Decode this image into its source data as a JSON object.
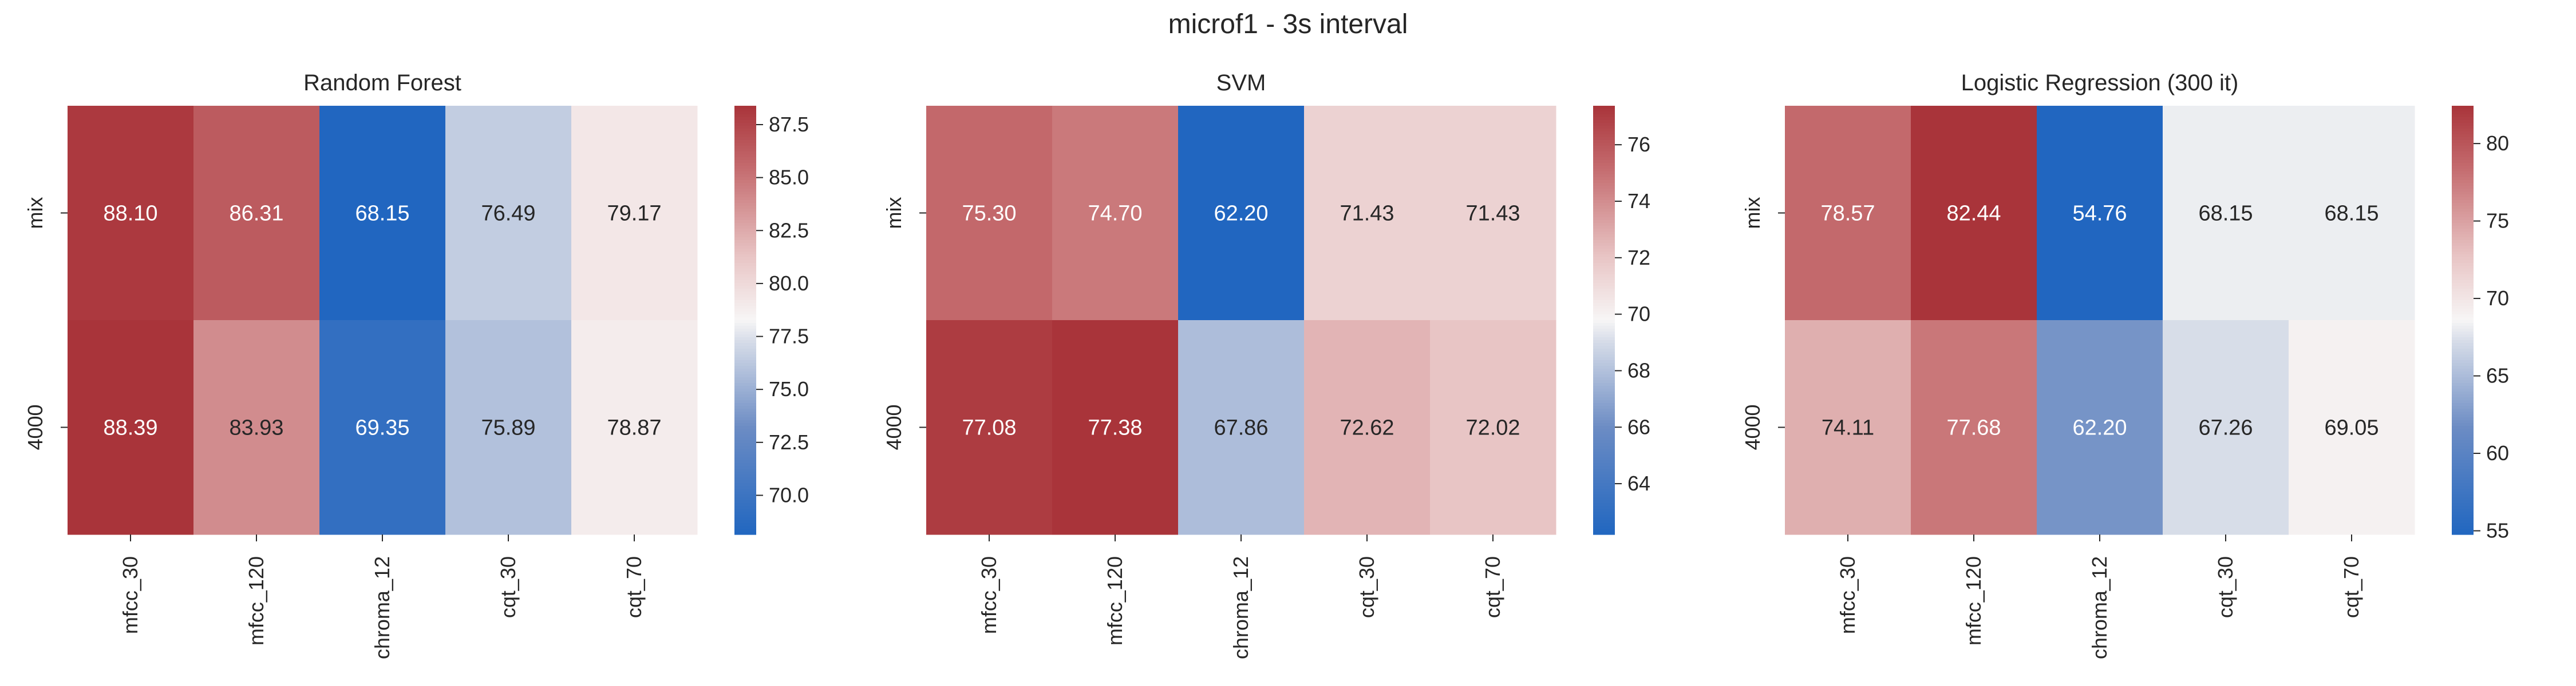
{
  "figure_title": "microf1 - 3s interval",
  "chart_data": [
    {
      "type": "heatmap",
      "title": "Random Forest",
      "rows": [
        "mix",
        "4000"
      ],
      "columns": [
        "mfcc_30",
        "mfcc_120",
        "chroma_12",
        "cqt_30",
        "cqt_70"
      ],
      "values": [
        [
          88.1,
          86.31,
          68.15,
          76.49,
          79.17
        ],
        [
          88.39,
          83.93,
          69.35,
          75.89,
          78.87
        ]
      ],
      "labels": [
        [
          "88.10",
          "86.31",
          "68.15",
          "76.49",
          "79.17"
        ],
        [
          "88.39",
          "83.93",
          "69.35",
          "75.89",
          "78.87"
        ]
      ],
      "colorbar_range": [
        68.15,
        88.39
      ],
      "colorbar_ticks": [
        "70.0",
        "72.5",
        "75.0",
        "77.5",
        "80.0",
        "82.5",
        "85.0",
        "87.5"
      ],
      "colormap": "vlag"
    },
    {
      "type": "heatmap",
      "title": "SVM",
      "rows": [
        "mix",
        "4000"
      ],
      "columns": [
        "mfcc_30",
        "mfcc_120",
        "chroma_12",
        "cqt_30",
        "cqt_70"
      ],
      "values": [
        [
          75.3,
          74.7,
          62.2,
          71.43,
          71.43
        ],
        [
          77.08,
          77.38,
          67.86,
          72.62,
          72.02
        ]
      ],
      "labels": [
        [
          "75.30",
          "74.70",
          "62.20",
          "71.43",
          "71.43"
        ],
        [
          "77.08",
          "77.38",
          "67.86",
          "72.62",
          "72.02"
        ]
      ],
      "colorbar_range": [
        62.2,
        77.38
      ],
      "colorbar_ticks": [
        "64",
        "66",
        "68",
        "70",
        "72",
        "74",
        "76"
      ],
      "colormap": "vlag"
    },
    {
      "type": "heatmap",
      "title": "Logistic Regression (300 it)",
      "rows": [
        "mix",
        "4000"
      ],
      "columns": [
        "mfcc_30",
        "mfcc_120",
        "chroma_12",
        "cqt_30",
        "cqt_70"
      ],
      "values": [
        [
          78.57,
          82.44,
          54.76,
          68.15,
          68.15
        ],
        [
          74.11,
          77.68,
          62.2,
          67.26,
          69.05
        ]
      ],
      "labels": [
        [
          "78.57",
          "82.44",
          "54.76",
          "68.15",
          "68.15"
        ],
        [
          "74.11",
          "77.68",
          "62.20",
          "67.26",
          "69.05"
        ]
      ],
      "colorbar_range": [
        54.76,
        82.44
      ],
      "colorbar_ticks": [
        "55",
        "60",
        "65",
        "70",
        "75",
        "80"
      ],
      "colormap": "vlag"
    }
  ]
}
